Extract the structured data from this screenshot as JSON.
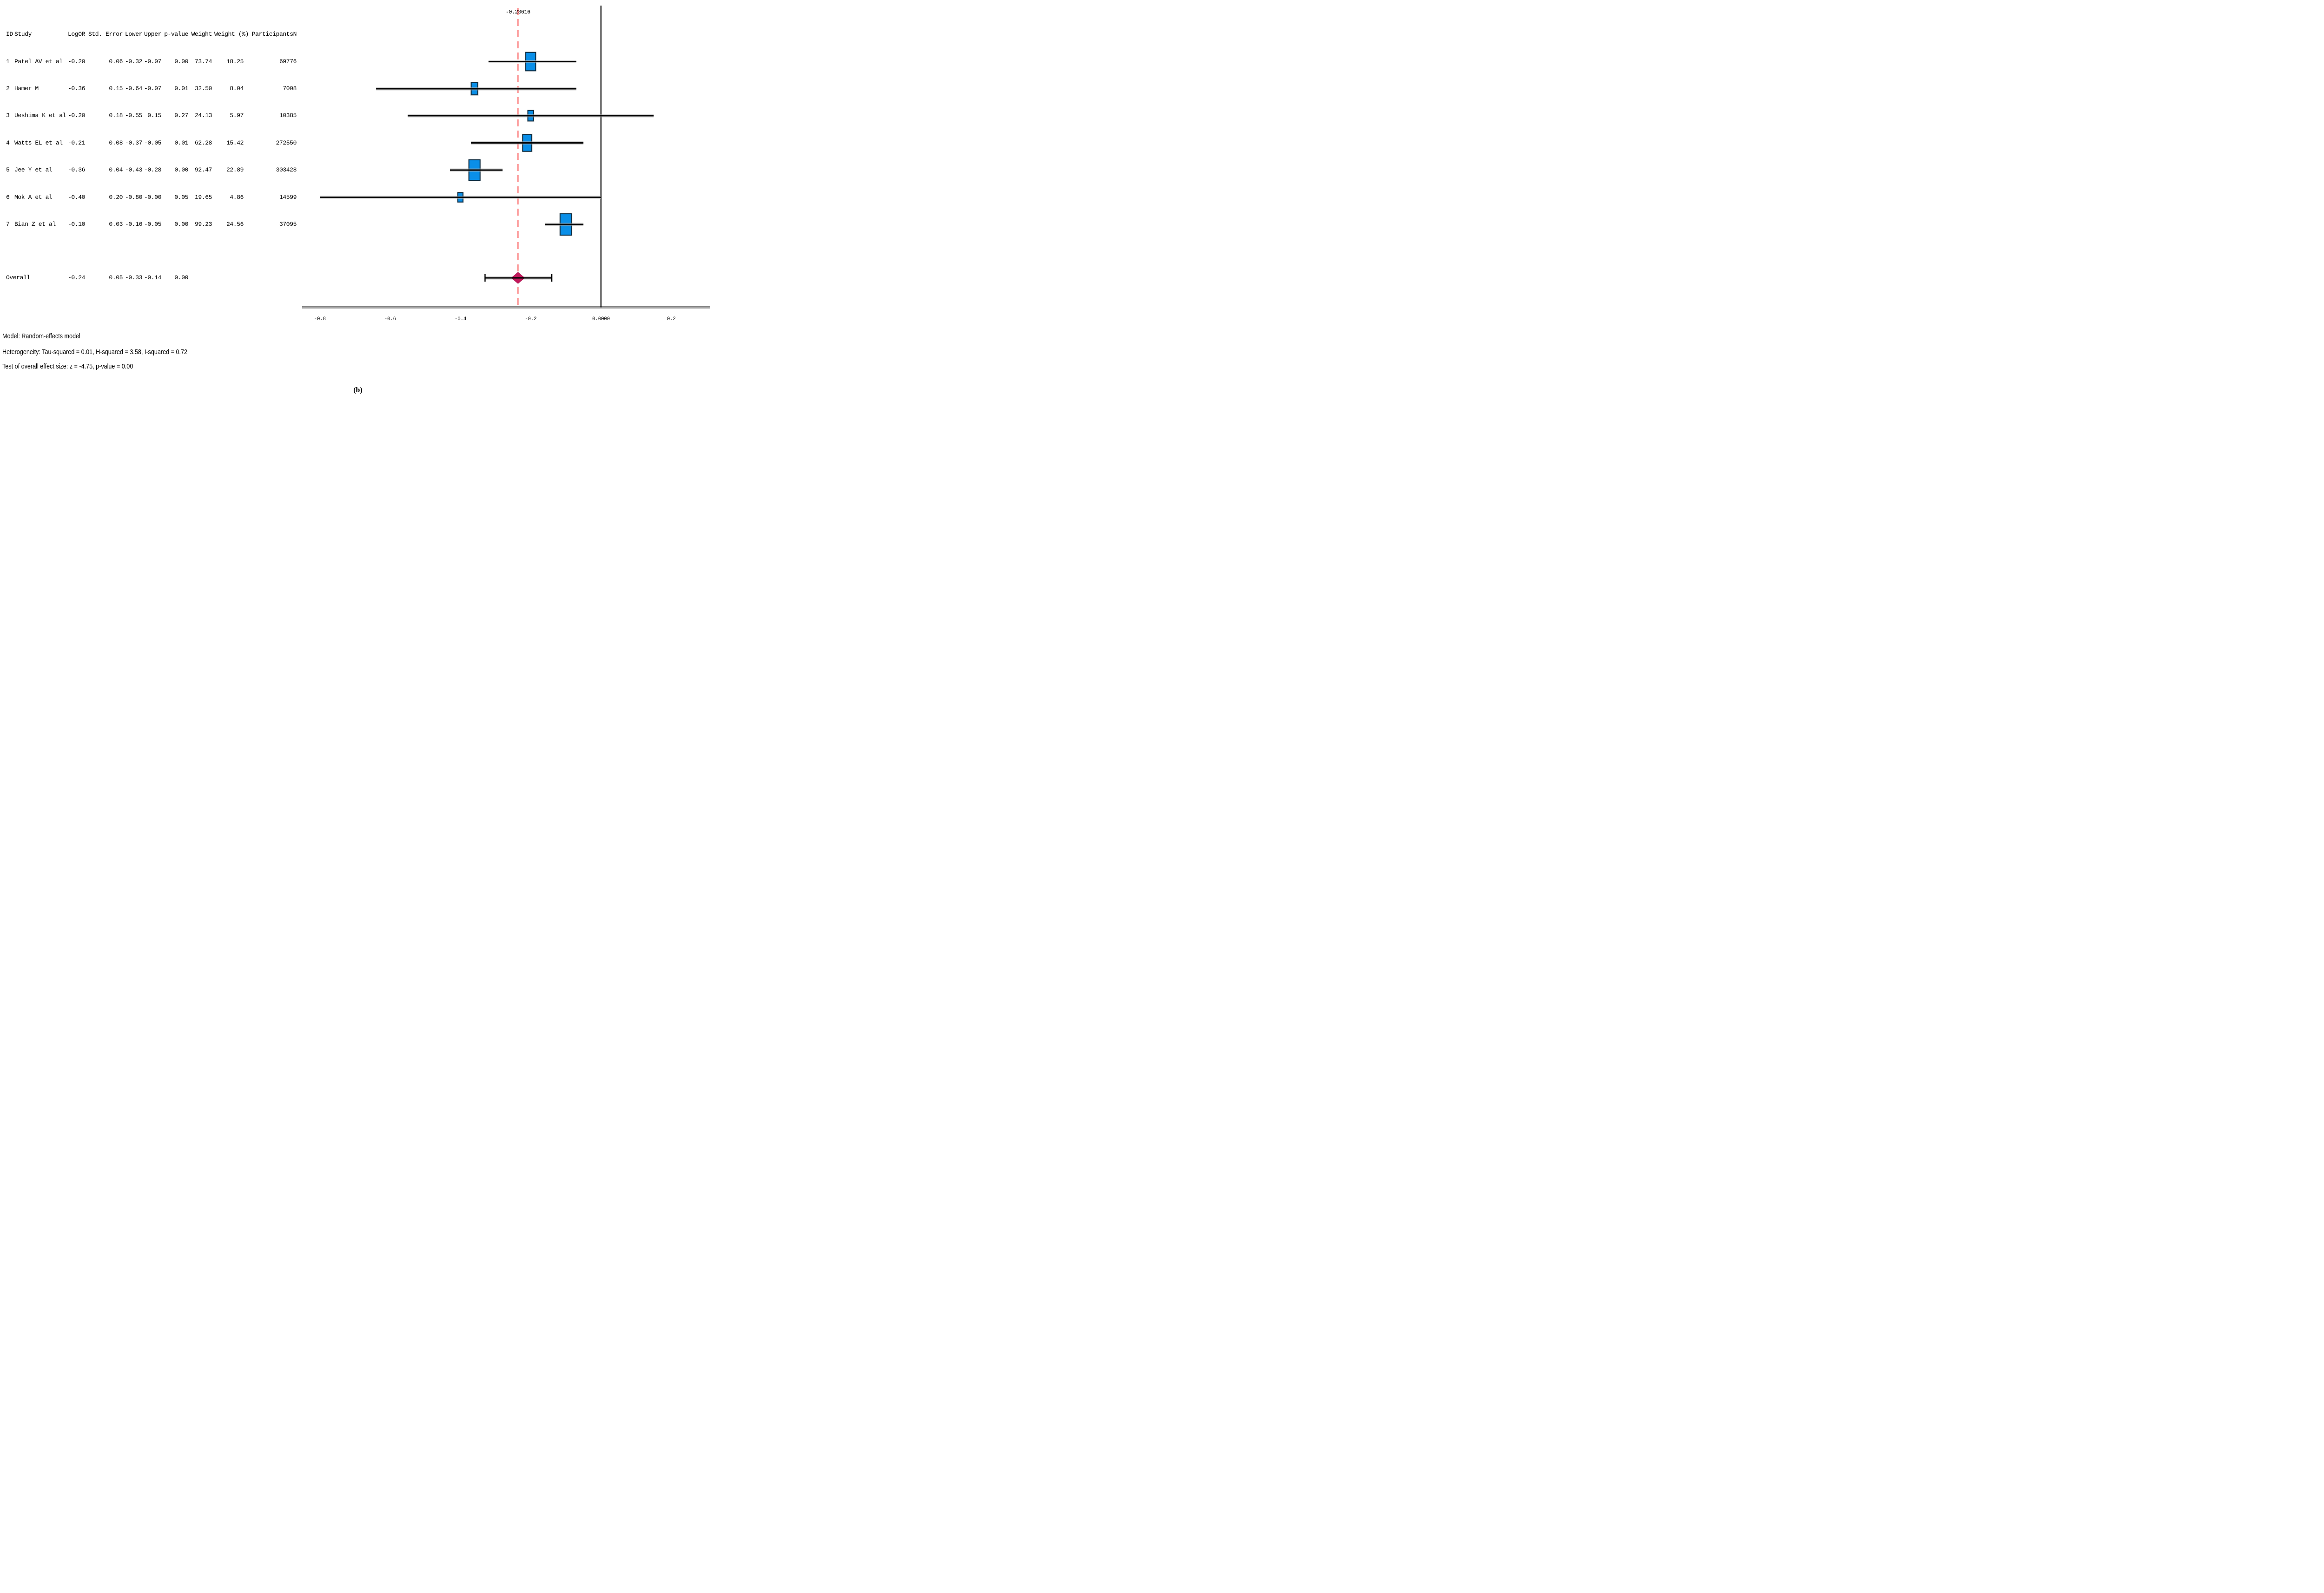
{
  "figure": {
    "caption": "(b)",
    "annotations": [
      "Model: Random-effects model",
      "Heterogeneity: Tau-squared = 0.01, H-squared = 3.58, I-squared = 0.72",
      "Test of overall effect size: z = -4.75, p-value = 0.00"
    ]
  },
  "table": {
    "columns": [
      {
        "key": "id",
        "label": "ID"
      },
      {
        "key": "study",
        "label": "Study"
      },
      {
        "key": "logor",
        "label": "LogOR"
      },
      {
        "key": "std_error",
        "label": "Std. Error"
      },
      {
        "key": "lower",
        "label": "Lower"
      },
      {
        "key": "upper",
        "label": "Upper"
      },
      {
        "key": "p_value",
        "label": "p-value"
      },
      {
        "key": "weight",
        "label": "Weight"
      },
      {
        "key": "weight_pct",
        "label": "Weight (%)"
      },
      {
        "key": "participants",
        "label": "ParticipantsN"
      }
    ]
  },
  "chart_data": {
    "type": "forest",
    "effect_measure": "LogOR",
    "x_axis": {
      "tick_values": [
        -0.8,
        -0.6,
        -0.4,
        -0.2,
        0,
        0.2
      ],
      "tick_labels": [
        "-0.8",
        "-0.6",
        "-0.4",
        "-0.2",
        "0.0000",
        "0.2"
      ],
      "range": [
        -0.87,
        0.33
      ]
    },
    "zero_line": 0,
    "pooled": {
      "value": -0.23616,
      "label": "-0.23616"
    },
    "studies": [
      {
        "id": "1",
        "study": "Patel AV et al",
        "logor": "-0.20",
        "std_error": "0.06",
        "lower": "-0.32",
        "upper": "-0.07",
        "p_value": "0.00",
        "weight": "73.74",
        "weight_pct": "18.25",
        "participants": "69776"
      },
      {
        "id": "2",
        "study": "Hamer M",
        "logor": "-0.36",
        "std_error": "0.15",
        "lower": "-0.64",
        "upper": "-0.07",
        "p_value": "0.01",
        "weight": "32.50",
        "weight_pct": "8.04",
        "participants": "7008"
      },
      {
        "id": "3",
        "study": "Ueshima K et al",
        "logor": "-0.20",
        "std_error": "0.18",
        "lower": "-0.55",
        "upper": "0.15",
        "p_value": "0.27",
        "weight": "24.13",
        "weight_pct": "5.97",
        "participants": "10385"
      },
      {
        "id": "4",
        "study": "Watts EL et al",
        "logor": "-0.21",
        "std_error": "0.08",
        "lower": "-0.37",
        "upper": "-0.05",
        "p_value": "0.01",
        "weight": "62.28",
        "weight_pct": "15.42",
        "participants": "272550"
      },
      {
        "id": "5",
        "study": "Jee Y et al",
        "logor": "-0.36",
        "std_error": "0.04",
        "lower": "-0.43",
        "upper": "-0.28",
        "p_value": "0.00",
        "weight": "92.47",
        "weight_pct": "22.89",
        "participants": "303428"
      },
      {
        "id": "6",
        "study": "Mok A et al",
        "logor": "-0.40",
        "std_error": "0.20",
        "lower": "-0.80",
        "upper": "-0.00",
        "p_value": "0.05",
        "weight": "19.65",
        "weight_pct": "4.86",
        "participants": "14599"
      },
      {
        "id": "7",
        "study": "Bian Z et al",
        "logor": "-0.10",
        "std_error": "0.03",
        "lower": "-0.16",
        "upper": "-0.05",
        "p_value": "0.00",
        "weight": "99.23",
        "weight_pct": "24.56",
        "participants": "37095"
      }
    ],
    "overall": {
      "label": "Overall",
      "logor": "-0.24",
      "std_error": "0.05",
      "lower": "-0.33",
      "upper": "-0.14",
      "p_value": "0.00"
    },
    "colors": {
      "marker_fill": "#0a8fe8",
      "marker_border": "#0d2b3f",
      "marker_halo": "#c8c8c8",
      "diamond": "#c2185b",
      "pooled_line": "#fa0000",
      "ci_line": "#000000",
      "ci_halo": "#b5b5b5",
      "axis_bar_dark": "#828282",
      "axis_bar_light": "#c0c0c0",
      "zero_line": "#000000"
    }
  }
}
